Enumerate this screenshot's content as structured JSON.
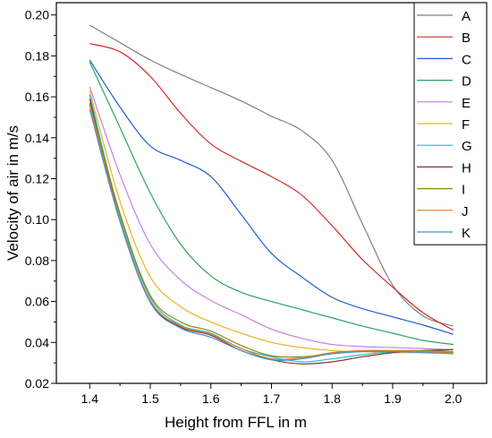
{
  "chart_data": {
    "type": "line",
    "title": "",
    "xlabel": "Height from FFL in m",
    "ylabel": "Velocity of air in m/s",
    "xlim": [
      1.345,
      2.055
    ],
    "ylim": [
      0.02,
      0.206
    ],
    "xticks": [
      "1.4",
      "1.5",
      "1.6",
      "1.7",
      "1.8",
      "1.9",
      "2.0"
    ],
    "yticks": [
      "0.02",
      "0.04",
      "0.06",
      "0.08",
      "0.10",
      "0.12",
      "0.14",
      "0.16",
      "0.18",
      "0.20"
    ],
    "xtick_values": [
      1.4,
      1.5,
      1.6,
      1.7,
      1.8,
      1.9,
      2.0
    ],
    "ytick_values": [
      0.02,
      0.04,
      0.06,
      0.08,
      0.1,
      0.12,
      0.14,
      0.16,
      0.18,
      0.2
    ],
    "grid": false,
    "legend_position": "top-right",
    "x": [
      1.4,
      1.45,
      1.5,
      1.55,
      1.6,
      1.65,
      1.7,
      1.75,
      1.8,
      1.85,
      1.9,
      1.95,
      2.0
    ],
    "series": [
      {
        "name": "A",
        "color": "#808080",
        "values": [
          0.195,
          0.1865,
          0.178,
          0.171,
          0.1645,
          0.158,
          0.1505,
          0.1435,
          0.129,
          0.098,
          0.068,
          0.053,
          0.048
        ]
      },
      {
        "name": "B",
        "color": "#d62728",
        "values": [
          0.186,
          0.182,
          0.17,
          0.152,
          0.137,
          0.1285,
          0.121,
          0.112,
          0.097,
          0.0805,
          0.067,
          0.0545,
          0.046
        ]
      },
      {
        "name": "C",
        "color": "#1f5fd1",
        "values": [
          0.178,
          0.155,
          0.136,
          0.129,
          0.121,
          0.1025,
          0.0835,
          0.072,
          0.062,
          0.0565,
          0.0525,
          0.0485,
          0.044
        ]
      },
      {
        "name": "D",
        "color": "#2ca060",
        "values": [
          0.177,
          0.145,
          0.113,
          0.088,
          0.0725,
          0.0645,
          0.06,
          0.056,
          0.052,
          0.048,
          0.0445,
          0.041,
          0.039
        ]
      },
      {
        "name": "E",
        "color": "#c97ee0",
        "values": [
          0.165,
          0.122,
          0.088,
          0.0705,
          0.0605,
          0.0535,
          0.0465,
          0.042,
          0.039,
          0.038,
          0.0375,
          0.037,
          0.0365
        ]
      },
      {
        "name": "F",
        "color": "#e6b422",
        "values": [
          0.163,
          0.109,
          0.072,
          0.0575,
          0.05,
          0.0445,
          0.04,
          0.0375,
          0.036,
          0.0355,
          0.035,
          0.035,
          0.035
        ]
      },
      {
        "name": "G",
        "color": "#17becf",
        "values": [
          0.161,
          0.102,
          0.062,
          0.0485,
          0.0445,
          0.037,
          0.033,
          0.0305,
          0.032,
          0.034,
          0.0355,
          0.036,
          0.0365
        ]
      },
      {
        "name": "H",
        "color": "#8c3030",
        "values": [
          0.159,
          0.1,
          0.06,
          0.0475,
          0.0435,
          0.036,
          0.0315,
          0.0295,
          0.0305,
          0.033,
          0.035,
          0.036,
          0.0365
        ]
      },
      {
        "name": "I",
        "color": "#7f8c1a",
        "values": [
          0.157,
          0.103,
          0.063,
          0.05,
          0.0455,
          0.0385,
          0.0335,
          0.033,
          0.0345,
          0.0355,
          0.036,
          0.036,
          0.0355
        ]
      },
      {
        "name": "J",
        "color": "#e07b20",
        "values": [
          0.156,
          0.1,
          0.0605,
          0.048,
          0.044,
          0.037,
          0.032,
          0.0325,
          0.035,
          0.036,
          0.036,
          0.0355,
          0.035
        ]
      },
      {
        "name": "K",
        "color": "#4a90d9",
        "values": [
          0.154,
          0.099,
          0.0595,
          0.047,
          0.0425,
          0.036,
          0.0315,
          0.032,
          0.0345,
          0.0355,
          0.0355,
          0.035,
          0.0345
        ]
      }
    ]
  }
}
